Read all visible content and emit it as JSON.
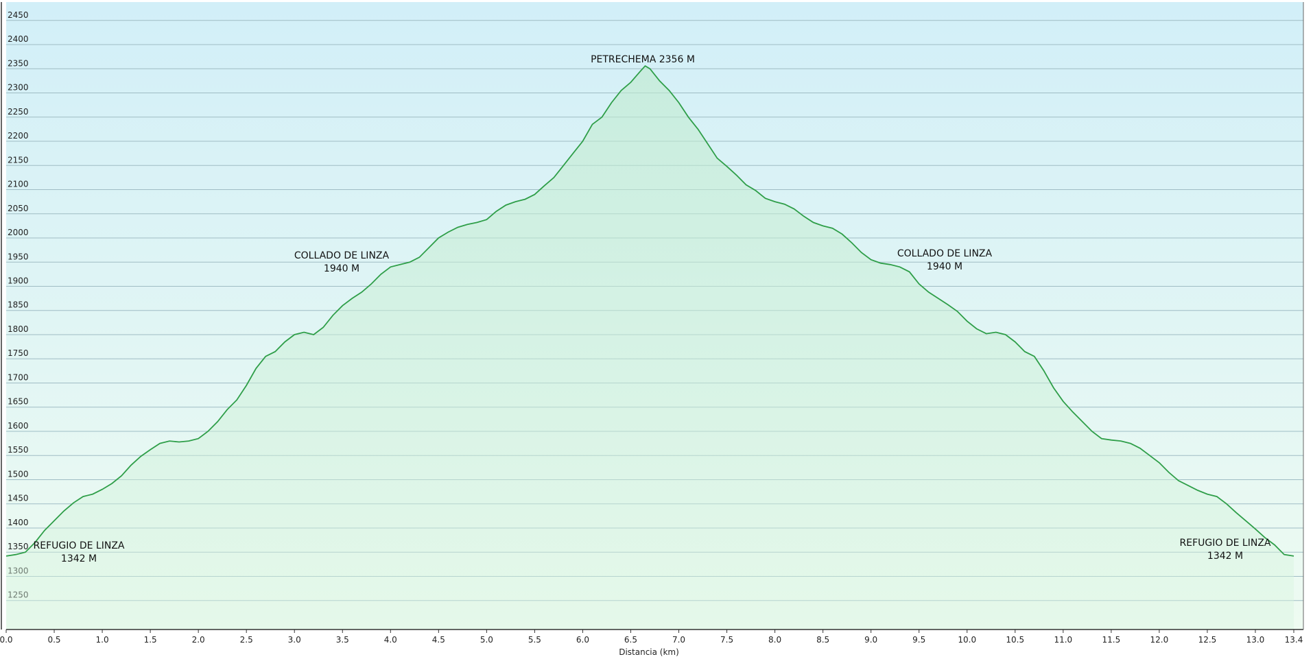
{
  "chart_data": {
    "type": "area",
    "x_label": "Distancia  (km)",
    "color": "#2e9e48",
    "grid": true,
    "xlim": [
      0,
      13.5
    ],
    "ylim": [
      1190,
      2488
    ],
    "xticks": [
      {
        "value": 0,
        "label": "0.0"
      },
      0.5,
      {
        "value": 1,
        "label": "1.0"
      },
      1.5,
      {
        "value": 2,
        "label": "2.0"
      },
      2.5,
      {
        "value": 3,
        "label": "3.0"
      },
      3.5,
      {
        "value": 4,
        "label": "4.0"
      },
      4.5,
      {
        "value": 5,
        "label": "5.0"
      },
      5.5,
      {
        "value": 6,
        "label": "6.0"
      },
      6.5,
      {
        "value": 7,
        "label": "7.0"
      },
      7.5,
      {
        "value": 8,
        "label": "8.0"
      },
      8.5,
      {
        "value": 9,
        "label": "9.0"
      },
      9.5,
      {
        "value": 10,
        "label": "10.0"
      },
      10.5,
      {
        "value": 11,
        "label": "11.0"
      },
      11.5,
      {
        "value": 12,
        "label": "12.0"
      },
      12.5,
      {
        "value": 13,
        "label": "13.0"
      },
      13.4
    ],
    "yticks": [
      1250,
      1300,
      1350,
      1400,
      1450,
      1500,
      1550,
      1600,
      1650,
      1700,
      1750,
      1800,
      1850,
      1900,
      1950,
      2000,
      2050,
      2100,
      2150,
      2200,
      2250,
      2300,
      2350,
      2400,
      2450
    ],
    "x": [
      0.0,
      0.1,
      0.2,
      0.3,
      0.4,
      0.5,
      0.6,
      0.7,
      0.8,
      0.9,
      1.0,
      1.1,
      1.2,
      1.3,
      1.4,
      1.5,
      1.6,
      1.7,
      1.8,
      1.9,
      2.0,
      2.1,
      2.2,
      2.3,
      2.4,
      2.5,
      2.6,
      2.7,
      2.8,
      2.9,
      3.0,
      3.1,
      3.2,
      3.3,
      3.4,
      3.5,
      3.6,
      3.7,
      3.8,
      3.9,
      4.0,
      4.1,
      4.2,
      4.3,
      4.4,
      4.5,
      4.6,
      4.7,
      4.8,
      4.9,
      5.0,
      5.1,
      5.2,
      5.3,
      5.4,
      5.5,
      5.6,
      5.7,
      5.8,
      5.9,
      6.0,
      6.1,
      6.2,
      6.3,
      6.4,
      6.5,
      6.6,
      6.65,
      6.7,
      6.8,
      6.9,
      7.0,
      7.1,
      7.2,
      7.3,
      7.4,
      7.5,
      7.6,
      7.7,
      7.8,
      7.9,
      8.0,
      8.1,
      8.2,
      8.3,
      8.4,
      8.5,
      8.6,
      8.7,
      8.8,
      8.9,
      9.0,
      9.1,
      9.2,
      9.3,
      9.4,
      9.5,
      9.6,
      9.7,
      9.8,
      9.9,
      10.0,
      10.1,
      10.2,
      10.3,
      10.4,
      10.5,
      10.6,
      10.7,
      10.8,
      10.9,
      11.0,
      11.1,
      11.2,
      11.3,
      11.4,
      11.5,
      11.6,
      11.7,
      11.8,
      11.9,
      12.0,
      12.1,
      12.2,
      12.3,
      12.4,
      12.5,
      12.6,
      12.7,
      12.8,
      12.9,
      13.0,
      13.1,
      13.2,
      13.3,
      13.4
    ],
    "values": [
      1342,
      1345,
      1350,
      1370,
      1395,
      1415,
      1435,
      1452,
      1465,
      1470,
      1480,
      1492,
      1508,
      1530,
      1548,
      1562,
      1575,
      1580,
      1578,
      1580,
      1585,
      1600,
      1620,
      1645,
      1665,
      1695,
      1730,
      1755,
      1765,
      1785,
      1800,
      1805,
      1800,
      1815,
      1840,
      1860,
      1875,
      1888,
      1905,
      1925,
      1940,
      1945,
      1950,
      1960,
      1980,
      2000,
      2012,
      2022,
      2028,
      2032,
      2038,
      2055,
      2068,
      2075,
      2080,
      2090,
      2108,
      2125,
      2150,
      2175,
      2200,
      2235,
      2250,
      2280,
      2305,
      2322,
      2345,
      2356,
      2350,
      2325,
      2305,
      2280,
      2250,
      2225,
      2195,
      2165,
      2148,
      2130,
      2110,
      2098,
      2082,
      2075,
      2070,
      2060,
      2045,
      2032,
      2025,
      2020,
      2008,
      1990,
      1970,
      1955,
      1948,
      1945,
      1940,
      1930,
      1905,
      1888,
      1875,
      1862,
      1848,
      1828,
      1812,
      1802,
      1805,
      1800,
      1785,
      1765,
      1755,
      1725,
      1690,
      1662,
      1640,
      1620,
      1600,
      1585,
      1582,
      1580,
      1575,
      1565,
      1550,
      1535,
      1515,
      1498,
      1488,
      1478,
      1470,
      1465,
      1450,
      1432,
      1415,
      1398,
      1380,
      1365,
      1345,
      1342
    ],
    "annotations": [
      {
        "lines": [
          "PETRECHEMA 2356 M"
        ]
      },
      {
        "lines": [
          "COLLADO DE LINZA",
          "1940 M"
        ]
      },
      {
        "lines": [
          "COLLADO DE LINZA",
          "1940 M"
        ]
      },
      {
        "lines": [
          "REFUGIO DE LINZA",
          "1342 M"
        ]
      },
      {
        "lines": [
          "REFUGIO DE LINZA",
          "1342 M"
        ]
      }
    ]
  }
}
